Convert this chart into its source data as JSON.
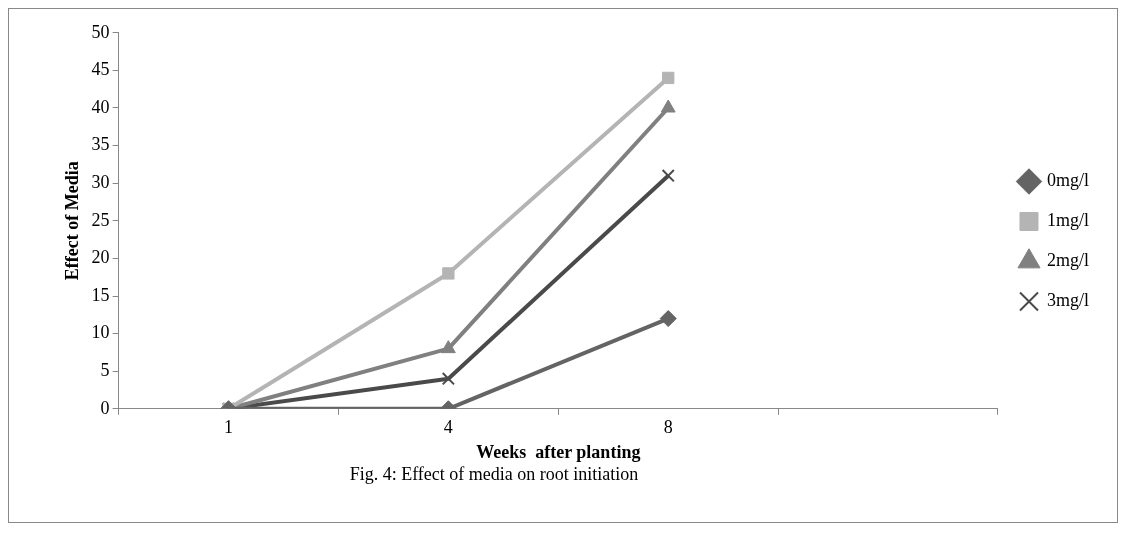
{
  "chart_data": {
    "type": "line",
    "xlabel": "Weeks  after planting",
    "ylabel": "Effect of Media",
    "annotations": [
      "Fig. 4: Effect of media on root initiation"
    ],
    "categories": [
      "1",
      "4",
      "8",
      null
    ],
    "series": [
      {
        "name": "0mg/l",
        "color": "#646464",
        "marker": "diamond",
        "values": [
          0,
          0,
          12,
          null
        ]
      },
      {
        "name": "1mg/l",
        "color": "#b4b4b4",
        "marker": "square",
        "values": [
          0,
          18,
          44,
          null
        ]
      },
      {
        "name": "2mg/l",
        "color": "#808080",
        "marker": "triangle",
        "values": [
          0,
          8,
          40,
          null
        ]
      },
      {
        "name": "3mg/l",
        "color": "#4a4a4a",
        "marker": "cross",
        "values": [
          0,
          4,
          31,
          null
        ]
      }
    ],
    "ylim": [
      0,
      50
    ],
    "yticks": [
      0,
      5,
      10,
      15,
      20,
      25,
      30,
      35,
      40,
      45,
      50
    ],
    "grid": false,
    "legend": "right",
    "line_style": "solid"
  }
}
